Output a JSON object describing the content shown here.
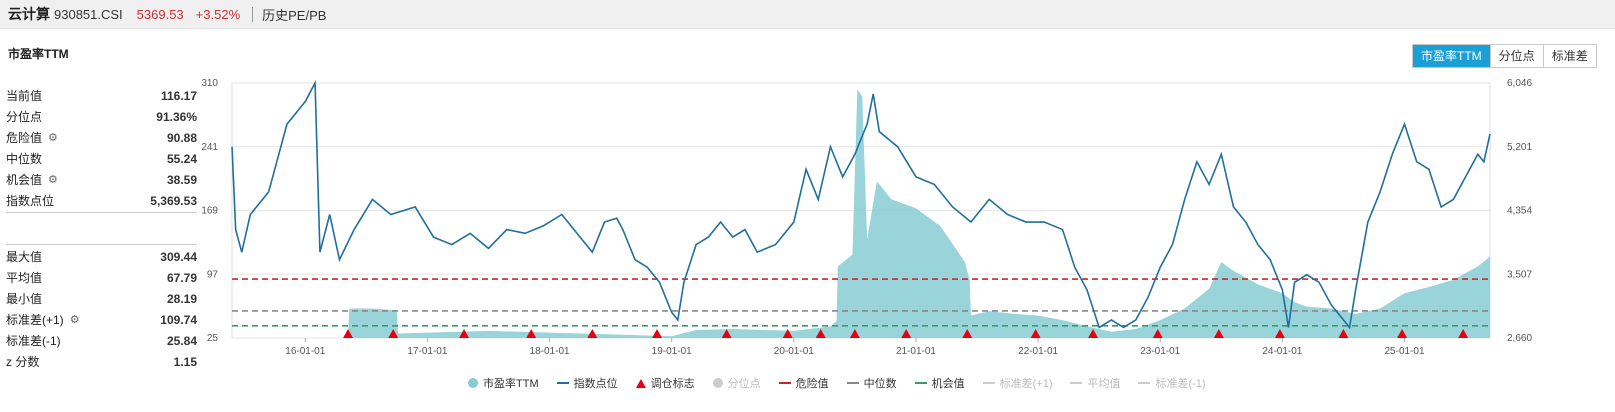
{
  "topbar": {
    "name": "云计算",
    "code": "930851.CSI",
    "price": "5369.53",
    "change": "+3.52%",
    "link": "历史PE/PB"
  },
  "chart_title": "市盈率TTM",
  "buttons": [
    "市盈率TTM",
    "分位点",
    "标准差"
  ],
  "stats_top": [
    {
      "label": "当前值",
      "value": "116.17",
      "gear": false
    },
    {
      "label": "分位点",
      "value": "91.36%",
      "gear": false
    },
    {
      "label": "危险值",
      "value": "90.88",
      "gear": true
    },
    {
      "label": "中位数",
      "value": "55.24",
      "gear": false
    },
    {
      "label": "机会值",
      "value": "38.59",
      "gear": true
    },
    {
      "label": "指数点位",
      "value": "5,369.53",
      "gear": false
    }
  ],
  "stats_bottom": [
    {
      "label": "最大值",
      "value": "309.44",
      "gear": false
    },
    {
      "label": "平均值",
      "value": "67.79",
      "gear": false
    },
    {
      "label": "最小值",
      "value": "28.19",
      "gear": false
    },
    {
      "label": "标准差(+1)",
      "value": "109.74",
      "gear": true
    },
    {
      "label": "标准差(-1)",
      "value": "25.84",
      "gear": false
    },
    {
      "label": "z 分数",
      "value": "1.15",
      "gear": false
    }
  ],
  "legend": [
    {
      "label": "市盈率TTM",
      "kind": "dot",
      "color": "#87ccd4",
      "active": true
    },
    {
      "label": "指数点位",
      "kind": "line",
      "color": "#1f6f9e",
      "active": true
    },
    {
      "label": "调仓标志",
      "kind": "triangle",
      "color": "#e60012",
      "active": true
    },
    {
      "label": "分位点",
      "kind": "dot",
      "color": "#cccccc",
      "active": false
    },
    {
      "label": "危险值",
      "kind": "dash",
      "color": "#c82828",
      "active": true
    },
    {
      "label": "中位数",
      "kind": "dash",
      "color": "#888888",
      "active": true
    },
    {
      "label": "机会值",
      "kind": "dash",
      "color": "#3a9a6a",
      "active": true
    },
    {
      "label": "标准差(+1)",
      "kind": "dash",
      "color": "#cccccc",
      "active": false
    },
    {
      "label": "平均值",
      "kind": "dash",
      "color": "#cccccc",
      "active": false
    },
    {
      "label": "标准差(-1)",
      "kind": "dash",
      "color": "#cccccc",
      "active": false
    }
  ],
  "chart_data": {
    "type": "line",
    "xlabel": "",
    "ylabel": "",
    "x_ticks": [
      "16-01-01",
      "17-01-01",
      "18-01-01",
      "19-01-01",
      "20-01-01",
      "21-01-01",
      "22-01-01",
      "23-01-01",
      "24-01-01",
      "25-01-01"
    ],
    "x_range": [
      2015.4,
      2025.7
    ],
    "x_tick_pos": [
      2016,
      2017,
      2018,
      2019,
      2020,
      2021,
      2022,
      2023,
      2024,
      2025
    ],
    "y_left_ticks": [
      "310",
      "241",
      "169",
      "97",
      "25"
    ],
    "y_left_range": [
      25,
      310
    ],
    "y_right_ticks": [
      "6,046",
      "5,201",
      "4,354",
      "3,507",
      "2,660"
    ],
    "y_right_range": [
      2660,
      6046
    ],
    "grid": true,
    "legend_position": "bottom",
    "colors": {
      "pe": "#87ccd4",
      "index": "#1f6f9e",
      "danger": "#c82828",
      "median": "#888888",
      "chance": "#3a9a6a",
      "marker": "#e60012"
    },
    "thresholds": {
      "danger": 90.88,
      "median": 55.24,
      "chance": 38.59
    },
    "series": [
      {
        "name": "市盈率TTM",
        "axis": "left",
        "points": [
          [
            2015.4,
            25
          ],
          [
            2016.35,
            25
          ],
          [
            2016.36,
            58
          ],
          [
            2016.55,
            58
          ],
          [
            2016.75,
            56
          ],
          [
            2016.76,
            30
          ],
          [
            2017.0,
            31
          ],
          [
            2017.5,
            33
          ],
          [
            2018.0,
            31
          ],
          [
            2018.5,
            29
          ],
          [
            2019.0,
            27
          ],
          [
            2019.2,
            34
          ],
          [
            2019.5,
            35
          ],
          [
            2020.0,
            33
          ],
          [
            2020.3,
            38
          ],
          [
            2020.35,
            44
          ],
          [
            2020.36,
            105
          ],
          [
            2020.48,
            118
          ],
          [
            2020.52,
            303
          ],
          [
            2020.56,
            295
          ],
          [
            2020.6,
            135
          ],
          [
            2020.68,
            200
          ],
          [
            2020.8,
            180
          ],
          [
            2021.0,
            170
          ],
          [
            2021.2,
            150
          ],
          [
            2021.3,
            130
          ],
          [
            2021.4,
            110
          ],
          [
            2021.44,
            90
          ],
          [
            2021.45,
            50
          ],
          [
            2021.6,
            55
          ],
          [
            2021.8,
            52
          ],
          [
            2022.0,
            50
          ],
          [
            2022.2,
            45
          ],
          [
            2022.4,
            38
          ],
          [
            2022.6,
            32
          ],
          [
            2022.8,
            35
          ],
          [
            2023.0,
            45
          ],
          [
            2023.2,
            58
          ],
          [
            2023.4,
            80
          ],
          [
            2023.5,
            110
          ],
          [
            2023.6,
            100
          ],
          [
            2023.8,
            85
          ],
          [
            2024.0,
            75
          ],
          [
            2024.1,
            65
          ],
          [
            2024.2,
            60
          ],
          [
            2024.4,
            58
          ],
          [
            2024.6,
            52
          ],
          [
            2024.8,
            58
          ],
          [
            2025.0,
            75
          ],
          [
            2025.2,
            82
          ],
          [
            2025.4,
            90
          ],
          [
            2025.6,
            105
          ],
          [
            2025.7,
            116
          ]
        ]
      },
      {
        "name": "指数点位",
        "axis": "right",
        "points": [
          [
            2015.4,
            5200
          ],
          [
            2015.43,
            4100
          ],
          [
            2015.48,
            3800
          ],
          [
            2015.55,
            4300
          ],
          [
            2015.7,
            4600
          ],
          [
            2015.85,
            5500
          ],
          [
            2016.0,
            5800
          ],
          [
            2016.08,
            6046
          ],
          [
            2016.12,
            3800
          ],
          [
            2016.2,
            4300
          ],
          [
            2016.28,
            3700
          ],
          [
            2016.4,
            4100
          ],
          [
            2016.55,
            4500
          ],
          [
            2016.7,
            4300
          ],
          [
            2016.9,
            4400
          ],
          [
            2017.05,
            4000
          ],
          [
            2017.2,
            3900
          ],
          [
            2017.35,
            4050
          ],
          [
            2017.5,
            3850
          ],
          [
            2017.65,
            4100
          ],
          [
            2017.8,
            4050
          ],
          [
            2017.95,
            4150
          ],
          [
            2018.1,
            4300
          ],
          [
            2018.25,
            4000
          ],
          [
            2018.35,
            3800
          ],
          [
            2018.45,
            4200
          ],
          [
            2018.55,
            4250
          ],
          [
            2018.6,
            4100
          ],
          [
            2018.7,
            3700
          ],
          [
            2018.8,
            3600
          ],
          [
            2018.9,
            3400
          ],
          [
            2019.0,
            3000
          ],
          [
            2019.05,
            2900
          ],
          [
            2019.1,
            3400
          ],
          [
            2019.2,
            3900
          ],
          [
            2019.3,
            4000
          ],
          [
            2019.4,
            4200
          ],
          [
            2019.5,
            4000
          ],
          [
            2019.6,
            4100
          ],
          [
            2019.7,
            3800
          ],
          [
            2019.85,
            3900
          ],
          [
            2020.0,
            4200
          ],
          [
            2020.1,
            4900
          ],
          [
            2020.2,
            4500
          ],
          [
            2020.3,
            5200
          ],
          [
            2020.4,
            4800
          ],
          [
            2020.5,
            5100
          ],
          [
            2020.6,
            5500
          ],
          [
            2020.65,
            5900
          ],
          [
            2020.7,
            5400
          ],
          [
            2020.85,
            5200
          ],
          [
            2021.0,
            4800
          ],
          [
            2021.15,
            4700
          ],
          [
            2021.3,
            4400
          ],
          [
            2021.45,
            4200
          ],
          [
            2021.6,
            4500
          ],
          [
            2021.75,
            4300
          ],
          [
            2021.9,
            4200
          ],
          [
            2022.05,
            4200
          ],
          [
            2022.2,
            4100
          ],
          [
            2022.3,
            3600
          ],
          [
            2022.4,
            3300
          ],
          [
            2022.5,
            2800
          ],
          [
            2022.6,
            2900
          ],
          [
            2022.7,
            2800
          ],
          [
            2022.8,
            2900
          ],
          [
            2022.9,
            3200
          ],
          [
            2023.0,
            3600
          ],
          [
            2023.1,
            3900
          ],
          [
            2023.2,
            4500
          ],
          [
            2023.3,
            5000
          ],
          [
            2023.4,
            4700
          ],
          [
            2023.5,
            5100
          ],
          [
            2023.6,
            4400
          ],
          [
            2023.7,
            4200
          ],
          [
            2023.8,
            3900
          ],
          [
            2023.9,
            3700
          ],
          [
            2024.0,
            3300
          ],
          [
            2024.05,
            2800
          ],
          [
            2024.1,
            3400
          ],
          [
            2024.2,
            3500
          ],
          [
            2024.3,
            3400
          ],
          [
            2024.4,
            3100
          ],
          [
            2024.5,
            2900
          ],
          [
            2024.55,
            2800
          ],
          [
            2024.6,
            3300
          ],
          [
            2024.7,
            4200
          ],
          [
            2024.8,
            4600
          ],
          [
            2024.9,
            5100
          ],
          [
            2025.0,
            5500
          ],
          [
            2025.1,
            5000
          ],
          [
            2025.2,
            4900
          ],
          [
            2025.3,
            4400
          ],
          [
            2025.4,
            4500
          ],
          [
            2025.5,
            4800
          ],
          [
            2025.6,
            5100
          ],
          [
            2025.65,
            5000
          ],
          [
            2025.7,
            5369.53
          ]
        ]
      }
    ],
    "markers": [
      2016.35,
      2016.72,
      2017.3,
      2017.85,
      2018.35,
      2018.88,
      2019.45,
      2019.95,
      2020.22,
      2020.5,
      2020.92,
      2021.42,
      2021.98,
      2022.45,
      2022.98,
      2023.48,
      2023.98,
      2024.5,
      2024.98,
      2025.48
    ]
  }
}
